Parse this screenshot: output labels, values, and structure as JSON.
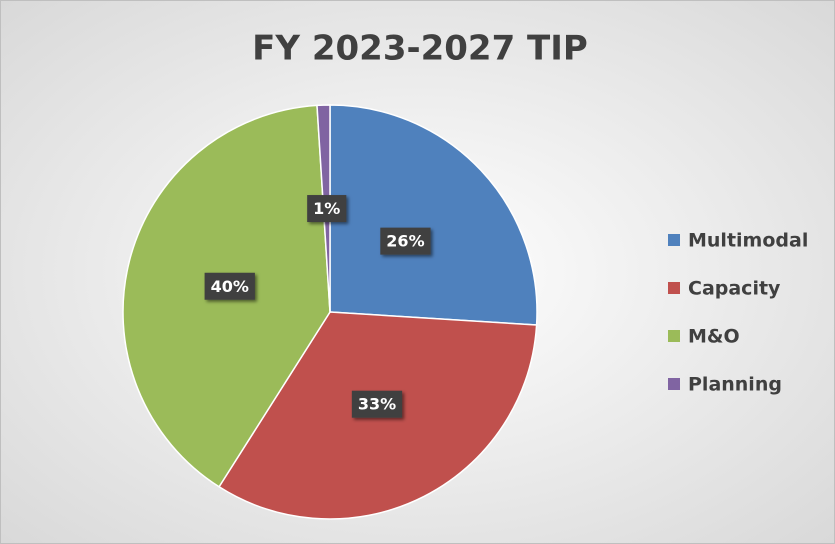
{
  "chart_data": {
    "type": "pie",
    "title": "FY 2023-2027 TIP",
    "categories": [
      "Multimodal",
      "Capacity",
      "M&O",
      "Planning"
    ],
    "values": [
      26,
      33,
      40,
      1
    ],
    "value_labels": [
      "26%",
      "33%",
      "40%",
      "1%"
    ],
    "colors": [
      "#4f81bd",
      "#c0504d",
      "#9bbb59",
      "#8064a2"
    ],
    "legend": "right"
  }
}
